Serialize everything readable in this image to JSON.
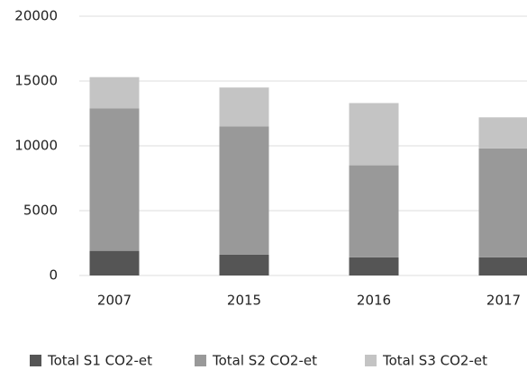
{
  "chart_data": {
    "type": "stacked_bar",
    "categories": [
      "2007",
      "2015",
      "2016",
      "2017"
    ],
    "series": [
      {
        "name": "Total S1 CO2-et",
        "color": "#555555",
        "values": [
          1900,
          1600,
          1400,
          1400
        ]
      },
      {
        "name": "Total S2 CO2-et",
        "color": "#999999",
        "values": [
          11000,
          9900,
          7100,
          8400
        ]
      },
      {
        "name": "Total S3 CO2-et",
        "color": "#c4c4c4",
        "values": [
          2400,
          3000,
          4800,
          2400
        ]
      }
    ],
    "ylim": [
      0,
      20000
    ],
    "yticks": [
      0,
      5000,
      10000,
      15000,
      20000
    ],
    "grid": true
  }
}
